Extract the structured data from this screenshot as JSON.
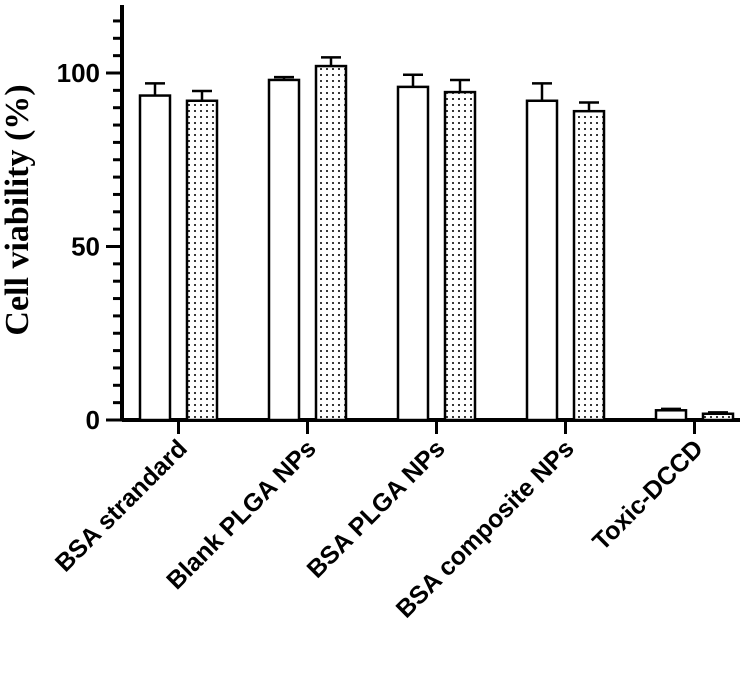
{
  "chart_data": {
    "type": "bar",
    "categories": [
      "BSA strandard",
      "Blank PLGA NPs",
      "BSA PLGA NPs",
      "BSA composite NPs",
      "Toxic-DCCD"
    ],
    "series": [
      {
        "values": [
          93.5,
          98.0,
          96.0,
          92.0,
          2.8
        ],
        "errors": [
          3.5,
          0.8,
          3.5,
          5.0,
          0.4
        ],
        "fill": "plain"
      },
      {
        "values": [
          92.0,
          102.0,
          94.5,
          89.0,
          1.8
        ],
        "errors": [
          2.8,
          2.5,
          3.5,
          2.5,
          0.4
        ],
        "fill": "dotted"
      }
    ],
    "ylabel": "Cell viability (%)",
    "ylim": [
      0,
      120
    ],
    "yticks": [
      0,
      50,
      100
    ],
    "yminor_step": 5,
    "tick_labels": [
      "0",
      "50",
      "100"
    ],
    "grid": false
  }
}
